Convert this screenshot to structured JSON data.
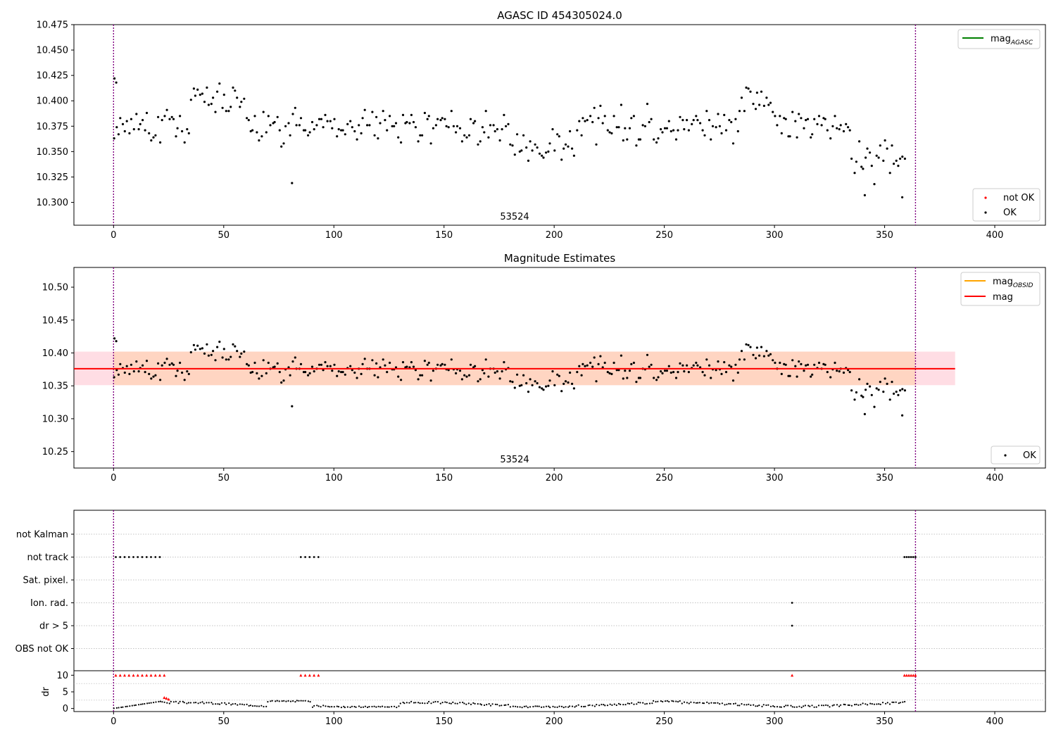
{
  "colors": {
    "ok": "#000000",
    "not_ok": "#ff0000",
    "mag_agasc": "#008000",
    "mag_obsid": "#ffa500",
    "mag": "#ff0000",
    "obsid_boundary": "#800080",
    "band_outer": "#ffdde4",
    "band_inner": "#ffd5c2",
    "grid": "#b0b0b0"
  },
  "chart_data": [
    {
      "type": "scatter",
      "title": "AGASC ID 454305024.0",
      "xlim": [
        -18,
        423
      ],
      "ylim": [
        10.2775,
        10.475
      ],
      "xticks": [
        "0",
        "50",
        "100",
        "150",
        "200",
        "250",
        "300",
        "350",
        "400"
      ],
      "yticks": [
        "10.300",
        "10.325",
        "10.350",
        "10.375",
        "10.400",
        "10.425",
        "10.450",
        "10.475"
      ],
      "obsid_boundaries": [
        0,
        364
      ],
      "obsid_label": "53524",
      "obsid_label_x": 182,
      "legend_upper": [
        {
          "label": "mag",
          "label_sub": "AGASC",
          "kind": "line",
          "color_key": "mag_agasc"
        }
      ],
      "legend_lower": [
        {
          "label": "not OK",
          "kind": "dot",
          "color_key": "not_ok"
        },
        {
          "label": "OK",
          "kind": "dot",
          "color_key": "ok"
        }
      ]
    },
    {
      "type": "scatter",
      "title": "Magnitude Estimates",
      "xlim": [
        -18,
        423
      ],
      "ylim": [
        10.225,
        10.53
      ],
      "xticks": [
        "0",
        "50",
        "100",
        "150",
        "200",
        "250",
        "300",
        "350",
        "400"
      ],
      "yticks": [
        "10.25",
        "10.30",
        "10.35",
        "10.40",
        "10.45",
        "10.50"
      ],
      "obsid_boundaries": [
        0,
        364
      ],
      "obsid_label": "53524",
      "obsid_label_x": 182,
      "mag": 10.376,
      "band_outer": [
        10.351,
        10.402
      ],
      "band_outer_x": [
        -18,
        382
      ],
      "band_inner": [
        10.351,
        10.402
      ],
      "band_inner_x": [
        0,
        364
      ],
      "legend_upper": [
        {
          "label": "mag",
          "label_sub": "OBSID",
          "kind": "line",
          "color_key": "mag_obsid"
        },
        {
          "label": "mag",
          "label_sub": "",
          "kind": "line",
          "color_key": "mag"
        }
      ],
      "legend_lower": [
        {
          "label": "OK",
          "kind": "dot",
          "color_key": "ok"
        }
      ]
    },
    {
      "type": "scatter",
      "title": "",
      "ylabel": "dr",
      "xlim": [
        -18,
        423
      ],
      "xticks": [
        "0",
        "50",
        "100",
        "150",
        "200",
        "250",
        "300",
        "350",
        "400"
      ],
      "flag_labels": [
        "not Kalman",
        "not track",
        "Sat. pixel.",
        "Ion. rad.",
        "dr > 5",
        "OBS not OK"
      ],
      "dr_ylim": [
        -0.5,
        10.5
      ],
      "dr_ticks": [
        "0",
        "5",
        "10"
      ],
      "obsid_boundaries": [
        0,
        364
      ],
      "flags": [
        {
          "label": "not track",
          "x": [
            1,
            3,
            5,
            7,
            9,
            11,
            13,
            15,
            17,
            19,
            21
          ]
        },
        {
          "label": "not track",
          "x": [
            85,
            87,
            89,
            91,
            93
          ]
        },
        {
          "label": "not track",
          "x": [
            359,
            360,
            361,
            362,
            363,
            364
          ]
        },
        {
          "label": "Ion. rad.",
          "x": [
            308
          ]
        },
        {
          "label": "dr > 5",
          "x": [
            308
          ]
        }
      ],
      "dr_not_ok_x": [
        1,
        3,
        5,
        7,
        9,
        11,
        13,
        15,
        17,
        19,
        21,
        23,
        85,
        87,
        89,
        91,
        93,
        308,
        359,
        360,
        361,
        362,
        363,
        364
      ],
      "dr_red_low": [
        [
          23,
          3.3
        ],
        [
          24,
          3.1
        ],
        [
          25,
          2.8
        ]
      ]
    }
  ]
}
